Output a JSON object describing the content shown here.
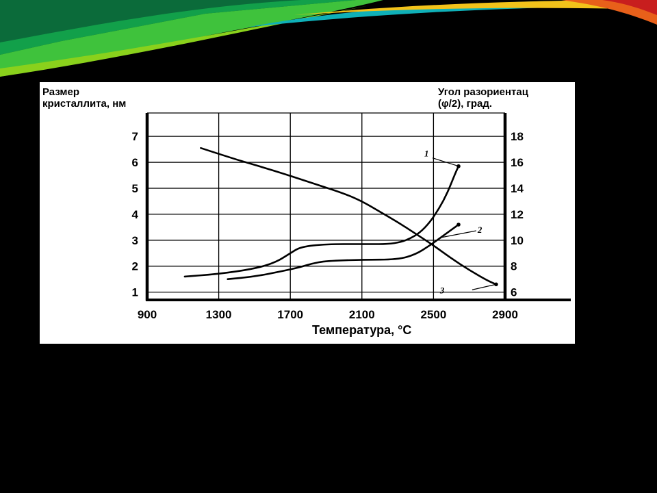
{
  "slide": {
    "background": "#000000",
    "banner_colors": [
      "#0b6b3a",
      "#12a04a",
      "#3fc23c",
      "#8ad11c",
      "#0fb0b8",
      "#f2c21a",
      "#e8601a",
      "#c81e1e"
    ]
  },
  "chart_data": {
    "type": "line",
    "ylabel_left": [
      "Размер",
      "кристаллита, нм"
    ],
    "ylabel_right": [
      "Угол разориентац",
      "(φ/2), град."
    ],
    "xlabel": "Температура, °C",
    "x_ticks": [
      "900",
      "1300",
      "1700",
      "2100",
      "2500",
      "2900"
    ],
    "y_left_ticks": [
      "1",
      "2",
      "3",
      "4",
      "5",
      "6",
      "7"
    ],
    "y_right_ticks": [
      "6",
      "8",
      "10",
      "12",
      "14",
      "16",
      "18"
    ],
    "xlim": [
      900,
      2900
    ],
    "ylim_left": [
      0.7,
      7.9
    ],
    "ylim_right": [
      5.4,
      19.8
    ],
    "grid": true,
    "series": [
      {
        "name": "1",
        "axis": "left",
        "points": [
          [
            1110,
            1.6
          ],
          [
            1300,
            1.7
          ],
          [
            1500,
            1.9
          ],
          [
            1620,
            2.15
          ],
          [
            1700,
            2.5
          ],
          [
            1760,
            2.75
          ],
          [
            1900,
            2.85
          ],
          [
            2100,
            2.85
          ],
          [
            2290,
            2.85
          ],
          [
            2400,
            3.15
          ],
          [
            2470,
            3.6
          ],
          [
            2530,
            4.2
          ],
          [
            2580,
            4.85
          ],
          [
            2620,
            5.55
          ],
          [
            2640,
            5.85
          ]
        ]
      },
      {
        "name": "2",
        "axis": "left",
        "points": [
          [
            1350,
            1.5
          ],
          [
            1500,
            1.6
          ],
          [
            1650,
            1.8
          ],
          [
            1750,
            1.95
          ],
          [
            1820,
            2.1
          ],
          [
            1900,
            2.2
          ],
          [
            2100,
            2.25
          ],
          [
            2300,
            2.25
          ],
          [
            2400,
            2.45
          ],
          [
            2480,
            2.8
          ],
          [
            2540,
            3.1
          ],
          [
            2600,
            3.4
          ],
          [
            2640,
            3.6
          ]
        ]
      },
      {
        "name": "3",
        "axis": "right",
        "points": [
          [
            1200,
            17.1
          ],
          [
            1400,
            16.2
          ],
          [
            1600,
            15.4
          ],
          [
            1800,
            14.5
          ],
          [
            2000,
            13.6
          ],
          [
            2100,
            13.0
          ],
          [
            2200,
            12.2
          ],
          [
            2300,
            11.4
          ],
          [
            2400,
            10.5
          ],
          [
            2500,
            9.6
          ],
          [
            2600,
            8.6
          ],
          [
            2700,
            7.7
          ],
          [
            2800,
            6.9
          ],
          [
            2850,
            6.6
          ]
        ]
      }
    ]
  }
}
